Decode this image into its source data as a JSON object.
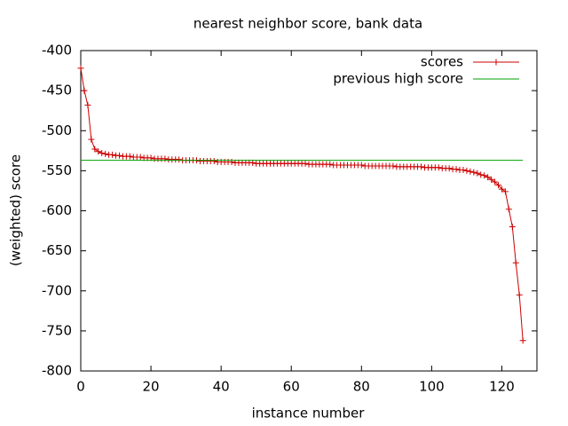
{
  "chart_data": {
    "type": "line",
    "title": "nearest neighbor score, bank data",
    "xlabel": "instance number",
    "ylabel": "(weighted) score",
    "xlim": [
      0,
      130
    ],
    "xticks": [
      0,
      20,
      40,
      60,
      80,
      100,
      120
    ],
    "ylim": [
      -800,
      -400
    ],
    "yticks": [
      -400,
      -450,
      -500,
      -550,
      -600,
      -650,
      -700,
      -750,
      -800
    ],
    "legend": "top-right",
    "series": [
      {
        "name": "scores",
        "color": "#cc0000",
        "marker": "+",
        "x": [
          0,
          1,
          2,
          3,
          4,
          5,
          6,
          7,
          8,
          9,
          10,
          11,
          12,
          13,
          14,
          15,
          16,
          17,
          18,
          19,
          20,
          21,
          22,
          23,
          24,
          25,
          26,
          27,
          28,
          29,
          30,
          31,
          32,
          33,
          34,
          35,
          36,
          37,
          38,
          39,
          40,
          41,
          42,
          43,
          44,
          45,
          46,
          47,
          48,
          49,
          50,
          51,
          52,
          53,
          54,
          55,
          56,
          57,
          58,
          59,
          60,
          61,
          62,
          63,
          64,
          65,
          66,
          67,
          68,
          69,
          70,
          71,
          72,
          73,
          74,
          75,
          76,
          77,
          78,
          79,
          80,
          81,
          82,
          83,
          84,
          85,
          86,
          87,
          88,
          89,
          90,
          91,
          92,
          93,
          94,
          95,
          96,
          97,
          98,
          99,
          100,
          101,
          102,
          103,
          104,
          105,
          106,
          107,
          108,
          109,
          110,
          111,
          112,
          113,
          114,
          115,
          116,
          117,
          118,
          119,
          120,
          121,
          122,
          123,
          124,
          125,
          126
        ],
        "values": [
          -422,
          -450,
          -468,
          -511,
          -523,
          -526,
          -528,
          -529,
          -530,
          -530,
          -531,
          -531,
          -532,
          -532,
          -532,
          -533,
          -533,
          -533,
          -534,
          -534,
          -534,
          -535,
          -535,
          -535,
          -535,
          -536,
          -536,
          -536,
          -536,
          -537,
          -537,
          -537,
          -537,
          -537,
          -538,
          -538,
          -538,
          -538,
          -538,
          -539,
          -539,
          -539,
          -539,
          -539,
          -540,
          -540,
          -540,
          -540,
          -540,
          -540,
          -541,
          -541,
          -541,
          -541,
          -541,
          -541,
          -541,
          -541,
          -541,
          -541,
          -541,
          -541,
          -541,
          -541,
          -541,
          -542,
          -542,
          -542,
          -542,
          -542,
          -542,
          -542,
          -543,
          -543,
          -543,
          -543,
          -543,
          -543,
          -543,
          -543,
          -543,
          -544,
          -544,
          -544,
          -544,
          -544,
          -544,
          -544,
          -544,
          -544,
          -545,
          -545,
          -545,
          -545,
          -545,
          -545,
          -545,
          -545,
          -546,
          -546,
          -546,
          -546,
          -546,
          -547,
          -547,
          -547,
          -548,
          -548,
          -549,
          -549,
          -550,
          -551,
          -552,
          -553,
          -555,
          -556,
          -558,
          -561,
          -564,
          -568,
          -573,
          -576,
          -598,
          -620,
          -665,
          -705,
          -762
        ]
      },
      {
        "name": "previous high score",
        "color": "#00a000",
        "x": [
          0,
          126
        ],
        "values": [
          -537,
          -537
        ]
      }
    ]
  }
}
